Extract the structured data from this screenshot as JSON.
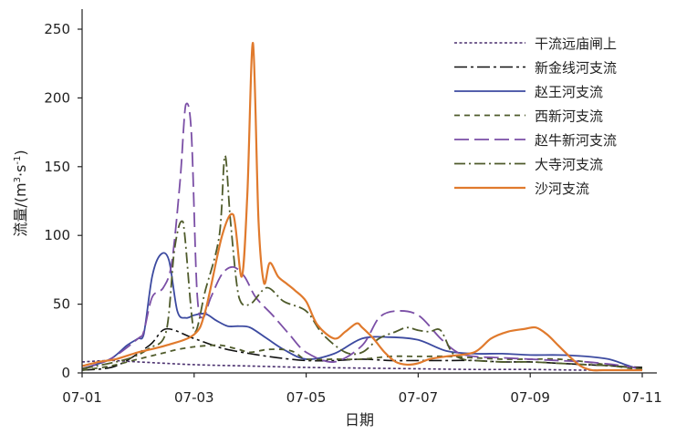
{
  "chart_data": {
    "type": "line",
    "xlabel": "日期",
    "ylabel_main": "流量/(m",
    "ylabel_sup1": "3",
    "ylabel_mid": "·s",
    "ylabel_sup2": "-1",
    "ylabel_end": ")",
    "xlim": [
      0,
      10
    ],
    "ylim": [
      0,
      250
    ],
    "x_ticks": [
      {
        "value": 0,
        "label": "07-01"
      },
      {
        "value": 2,
        "label": "07-03"
      },
      {
        "value": 4,
        "label": "07-05"
      },
      {
        "value": 6,
        "label": "07-07"
      },
      {
        "value": 8,
        "label": "07-09"
      },
      {
        "value": 10,
        "label": "07-11"
      }
    ],
    "y_ticks": [
      {
        "value": 0,
        "label": "0"
      },
      {
        "value": 50,
        "label": "50"
      },
      {
        "value": 100,
        "label": "100"
      },
      {
        "value": 150,
        "label": "150"
      },
      {
        "value": 200,
        "label": "200"
      },
      {
        "value": 250,
        "label": "250"
      }
    ],
    "grid": false,
    "legend_position": "top-right",
    "series": [
      {
        "name": "干流远庙闸上",
        "color": "#4a2f6e",
        "dash": "3,2.5",
        "width": 1.6,
        "x": [
          0,
          0.5,
          1,
          2,
          3,
          4,
          5,
          6,
          7,
          8,
          9,
          10
        ],
        "y": [
          8,
          9,
          8,
          6,
          5,
          4,
          3.5,
          3,
          2.5,
          2.5,
          2,
          2
        ]
      },
      {
        "name": "新金线河支流",
        "color": "#111111",
        "dash": "14,4,3,4",
        "width": 1.6,
        "x": [
          0,
          0.6,
          1.2,
          1.5,
          2,
          2.5,
          3,
          3.5,
          4,
          4.5,
          5,
          5.5,
          6,
          6.5,
          7,
          7.5,
          8,
          8.5,
          9,
          9.5,
          10
        ],
        "y": [
          2,
          5,
          20,
          32,
          25,
          18,
          14,
          11,
          9,
          9,
          10,
          9,
          9,
          9,
          9,
          8,
          8,
          7,
          6,
          5,
          4
        ]
      },
      {
        "name": "赵王河支流",
        "color": "#3c4aa0",
        "dash": "",
        "width": 1.8,
        "x": [
          0,
          0.5,
          0.8,
          1.0,
          1.1,
          1.25,
          1.4,
          1.55,
          1.7,
          1.85,
          2.0,
          2.2,
          2.4,
          2.6,
          2.8,
          3.0,
          3.3,
          3.6,
          4.0,
          4.5,
          5.0,
          5.5,
          6.0,
          6.5,
          7.0,
          7.5,
          8.0,
          8.5,
          9.0,
          9.4,
          9.7,
          10.0
        ],
        "y": [
          3,
          10,
          20,
          25,
          28,
          70,
          86,
          82,
          45,
          40,
          42,
          43,
          38,
          34,
          34,
          33,
          25,
          17,
          10,
          14,
          25,
          26,
          24,
          16,
          14,
          14,
          13,
          13,
          12,
          10,
          6,
          2
        ]
      },
      {
        "name": "西新河支流",
        "color": "#4f5b2b",
        "dash": "6,5",
        "width": 1.8,
        "x": [
          0,
          0.5,
          1.0,
          1.3,
          1.5,
          1.7,
          2.0,
          2.3,
          2.5,
          2.8,
          3.0,
          3.3,
          3.6,
          3.8,
          4.0,
          4.5,
          5.0,
          5.5,
          6.0,
          6.5,
          7.0,
          7.5,
          8.0,
          8.5,
          9.0,
          9.5,
          10.0
        ],
        "y": [
          2,
          5,
          10,
          13,
          15,
          17,
          19,
          20,
          20,
          17,
          15,
          17,
          17,
          15,
          10,
          10,
          10,
          12,
          12,
          12,
          11,
          10,
          10,
          10,
          8,
          5,
          2
        ]
      },
      {
        "name": "赵牛新河支流",
        "color": "#7b4fa6",
        "dash": "16,6",
        "width": 1.8,
        "x": [
          0,
          0.5,
          1.0,
          1.1,
          1.25,
          1.45,
          1.6,
          1.75,
          1.85,
          1.95,
          2.05,
          2.15,
          2.3,
          2.5,
          2.7,
          2.9,
          3.1,
          3.4,
          3.7,
          4.0,
          4.5,
          5.0,
          5.3,
          5.6,
          6.0,
          6.4,
          6.7,
          7.0,
          7.5,
          8.0,
          8.5,
          9.0,
          9.5,
          10.0
        ],
        "y": [
          3,
          10,
          25,
          30,
          55,
          62,
          80,
          140,
          195,
          175,
          60,
          40,
          55,
          72,
          77,
          70,
          55,
          42,
          28,
          15,
          8,
          20,
          40,
          45,
          42,
          25,
          15,
          12,
          11,
          10,
          9,
          8,
          6,
          3
        ]
      },
      {
        "name": "大寺河支流",
        "color": "#4f5b2b",
        "dash": "12,4,2,4",
        "width": 1.8,
        "x": [
          0,
          0.8,
          1.2,
          1.5,
          1.65,
          1.8,
          2.0,
          2.2,
          2.45,
          2.55,
          2.65,
          2.8,
          3.0,
          3.3,
          3.6,
          4.0,
          4.3,
          4.7,
          5.0,
          5.3,
          5.6,
          5.8,
          6.0,
          6.2,
          6.4,
          6.6,
          6.8,
          7.0,
          7.5,
          8.0,
          8.5,
          9.0,
          9.5,
          10.0
        ],
        "y": [
          3,
          10,
          18,
          30,
          90,
          110,
          30,
          60,
          100,
          158,
          110,
          55,
          50,
          62,
          52,
          45,
          28,
          15,
          15,
          25,
          30,
          33,
          31,
          30,
          31,
          15,
          10,
          9,
          8,
          8,
          7,
          6,
          5,
          3
        ]
      },
      {
        "name": "沙河支流",
        "color": "#e07a2d",
        "dash": "",
        "width": 2.2,
        "x": [
          0,
          0.3,
          0.6,
          1.0,
          1.5,
          2.0,
          2.2,
          2.5,
          2.7,
          2.85,
          2.95,
          3.05,
          3.15,
          3.25,
          3.35,
          3.5,
          3.65,
          3.8,
          4.0,
          4.2,
          4.5,
          4.7,
          4.9,
          5.0,
          5.2,
          5.4,
          5.6,
          5.8,
          6.0,
          6.2,
          6.5,
          7.0,
          7.3,
          7.6,
          7.9,
          8.1,
          8.3,
          8.5,
          8.7,
          8.9,
          9.1,
          9.3,
          9.6,
          10.0
        ],
        "y": [
          5,
          8,
          10,
          15,
          20,
          28,
          45,
          100,
          115,
          70,
          130,
          240,
          110,
          65,
          80,
          70,
          65,
          60,
          52,
          35,
          25,
          30,
          36,
          33,
          25,
          15,
          8,
          6,
          7,
          10,
          12,
          15,
          25,
          30,
          32,
          33,
          28,
          20,
          12,
          5,
          2,
          2,
          2,
          2
        ]
      }
    ]
  }
}
